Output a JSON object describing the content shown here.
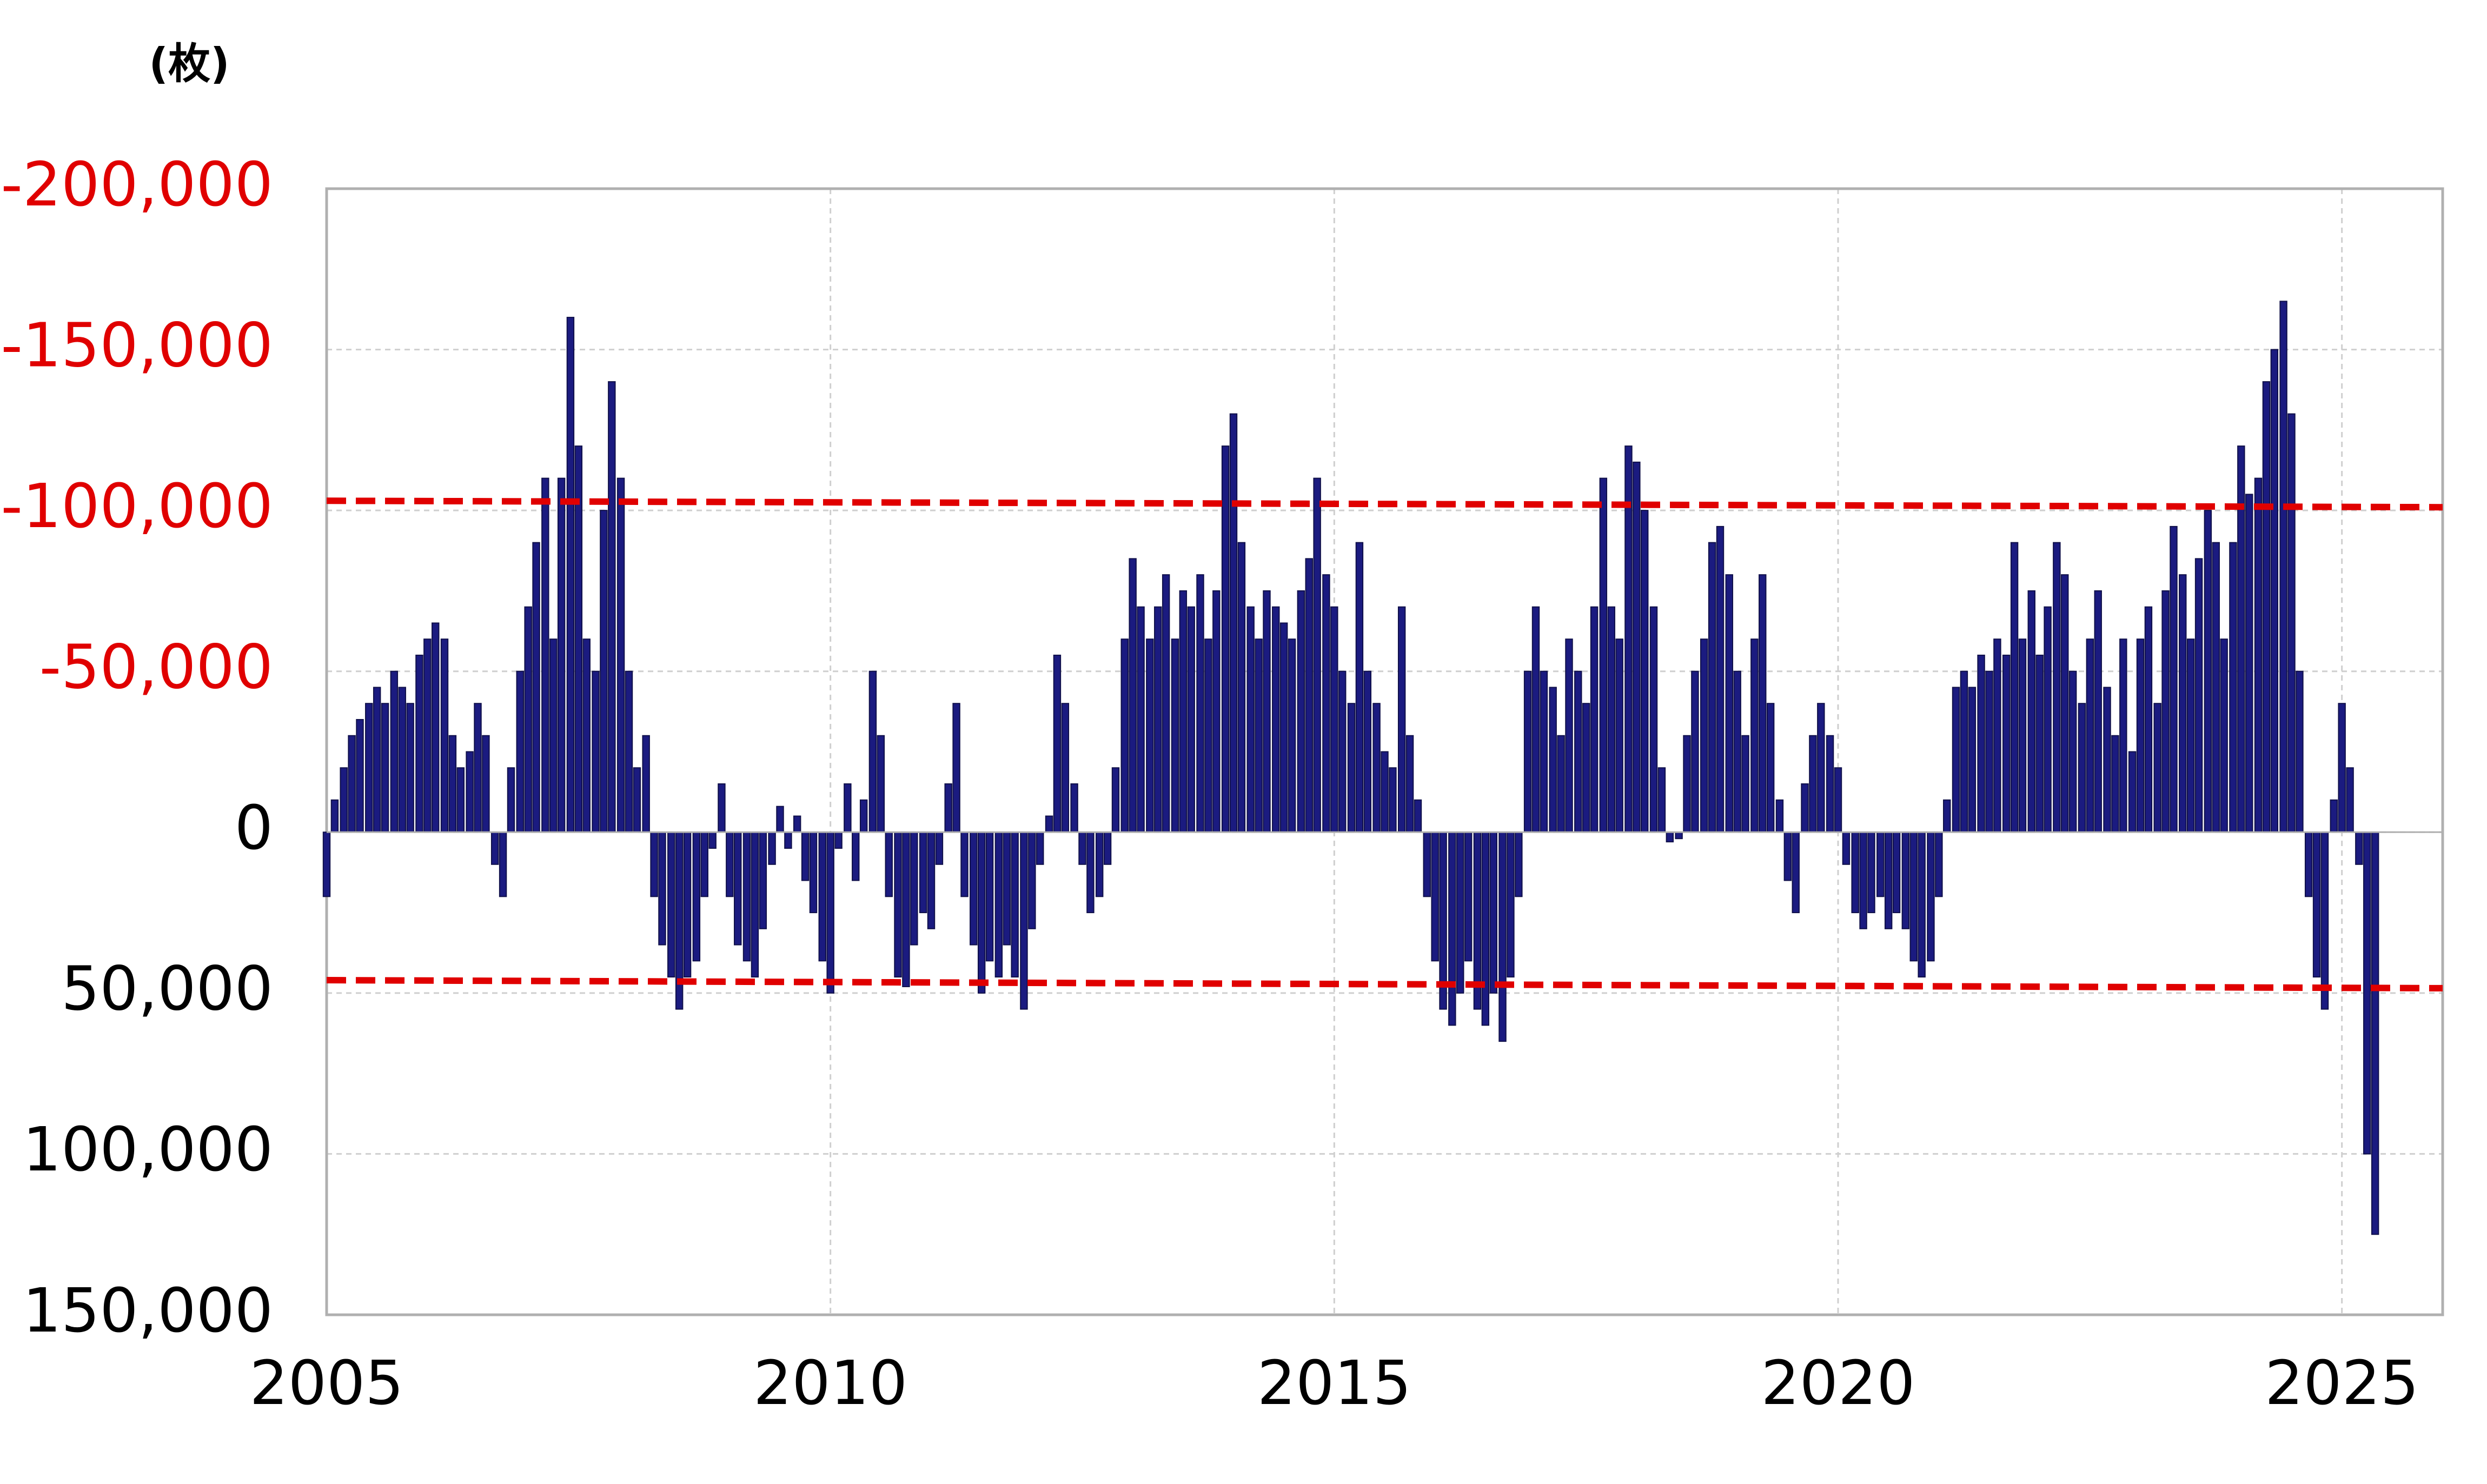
{
  "chart_data": {
    "type": "bar",
    "unit_label": "(枚)",
    "color": "#1b1b80",
    "negative_tick_color": "#e00000",
    "y_inverted": true,
    "grid": true,
    "xlim": [
      2005,
      2026
    ],
    "xticks": [
      2005,
      2010,
      2015,
      2020,
      2025
    ],
    "ylim": [
      -200000,
      150000
    ],
    "yticks": [
      {
        "value": -200000,
        "label": "-200,000"
      },
      {
        "value": -150000,
        "label": "-150,000"
      },
      {
        "value": -100000,
        "label": "-100,000"
      },
      {
        "value": -50000,
        "label": "-50,000"
      },
      0,
      {
        "value": 50000,
        "label": "50,000"
      },
      {
        "value": 100000,
        "label": "100,000"
      },
      {
        "value": 150000,
        "label": "150,000"
      }
    ],
    "reference_lines": [
      {
        "x": [
          2005,
          2026
        ],
        "y": [
          -103000,
          -101000
        ],
        "color": "#e00000"
      },
      {
        "x": [
          2005,
          2026
        ],
        "y": [
          46000,
          48500
        ],
        "color": "#e00000"
      }
    ],
    "x": [
      2005,
      2005.08,
      2005.17,
      2005.25,
      2005.33,
      2005.42,
      2005.5,
      2005.58,
      2005.67,
      2005.75,
      2005.83,
      2005.92,
      2006,
      2006.08,
      2006.17,
      2006.25,
      2006.33,
      2006.42,
      2006.5,
      2006.58,
      2006.67,
      2006.75,
      2006.83,
      2006.92,
      2007,
      2007.08,
      2007.17,
      2007.25,
      2007.33,
      2007.42,
      2007.5,
      2007.58,
      2007.67,
      2007.75,
      2007.83,
      2007.92,
      2008,
      2008.08,
      2008.17,
      2008.25,
      2008.33,
      2008.42,
      2008.5,
      2008.58,
      2008.67,
      2008.75,
      2008.83,
      2008.92,
      2009,
      2009.08,
      2009.17,
      2009.25,
      2009.33,
      2009.42,
      2009.5,
      2009.58,
      2009.67,
      2009.75,
      2009.83,
      2009.92,
      2010,
      2010.08,
      2010.17,
      2010.25,
      2010.33,
      2010.42,
      2010.5,
      2010.58,
      2010.67,
      2010.75,
      2010.83,
      2010.92,
      2011,
      2011.08,
      2011.17,
      2011.25,
      2011.33,
      2011.42,
      2011.5,
      2011.58,
      2011.67,
      2011.75,
      2011.83,
      2011.92,
      2012,
      2012.08,
      2012.17,
      2012.25,
      2012.33,
      2012.42,
      2012.5,
      2012.58,
      2012.67,
      2012.75,
      2012.83,
      2012.92,
      2013,
      2013.08,
      2013.17,
      2013.25,
      2013.33,
      2013.42,
      2013.5,
      2013.58,
      2013.67,
      2013.75,
      2013.83,
      2013.92,
      2014,
      2014.08,
      2014.17,
      2014.25,
      2014.33,
      2014.42,
      2014.5,
      2014.58,
      2014.67,
      2014.75,
      2014.83,
      2014.92,
      2015,
      2015.08,
      2015.17,
      2015.25,
      2015.33,
      2015.42,
      2015.5,
      2015.58,
      2015.67,
      2015.75,
      2015.83,
      2015.92,
      2016,
      2016.08,
      2016.17,
      2016.25,
      2016.33,
      2016.42,
      2016.5,
      2016.58,
      2016.67,
      2016.75,
      2016.83,
      2016.92,
      2017,
      2017.08,
      2017.17,
      2017.25,
      2017.33,
      2017.42,
      2017.5,
      2017.58,
      2017.67,
      2017.75,
      2017.83,
      2017.92,
      2018,
      2018.08,
      2018.17,
      2018.25,
      2018.33,
      2018.42,
      2018.5,
      2018.58,
      2018.67,
      2018.75,
      2018.83,
      2018.92,
      2019,
      2019.08,
      2019.17,
      2019.25,
      2019.33,
      2019.42,
      2019.5,
      2019.58,
      2019.67,
      2019.75,
      2019.83,
      2019.92,
      2020,
      2020.08,
      2020.17,
      2020.25,
      2020.33,
      2020.42,
      2020.5,
      2020.58,
      2020.67,
      2020.75,
      2020.83,
      2020.92,
      2021,
      2021.08,
      2021.17,
      2021.25,
      2021.33,
      2021.42,
      2021.5,
      2021.58,
      2021.67,
      2021.75,
      2021.83,
      2021.92,
      2022,
      2022.08,
      2022.17,
      2022.25,
      2022.33,
      2022.42,
      2022.5,
      2022.58,
      2022.67,
      2022.75,
      2022.83,
      2022.92,
      2023,
      2023.08,
      2023.17,
      2023.25,
      2023.33,
      2023.42,
      2023.5,
      2023.58,
      2023.67,
      2023.75,
      2023.83,
      2023.92,
      2024,
      2024.08,
      2024.17,
      2024.25,
      2024.33,
      2024.42,
      2024.5,
      2024.58,
      2024.67,
      2024.75,
      2024.83,
      2024.92,
      2025,
      2025.08,
      2025.17,
      2025.25,
      2025.33
    ],
    "values": [
      20000,
      -10000,
      -20000,
      -30000,
      -35000,
      -40000,
      -45000,
      -40000,
      -50000,
      -45000,
      -40000,
      -55000,
      -60000,
      -65000,
      -60000,
      -30000,
      -20000,
      -25000,
      -40000,
      -30000,
      10000,
      20000,
      -20000,
      -50000,
      -70000,
      -90000,
      -110000,
      -60000,
      -110000,
      -160000,
      -120000,
      -60000,
      -50000,
      -100000,
      -140000,
      -110000,
      -50000,
      -20000,
      -30000,
      20000,
      35000,
      45000,
      55000,
      45000,
      40000,
      20000,
      5000,
      -15000,
      20000,
      35000,
      40000,
      45000,
      30000,
      10000,
      -8000,
      5000,
      -5000,
      15000,
      25000,
      40000,
      50000,
      5000,
      -15000,
      15000,
      -10000,
      -50000,
      -30000,
      20000,
      45000,
      48000,
      35000,
      25000,
      30000,
      10000,
      -15000,
      -40000,
      20000,
      35000,
      50000,
      40000,
      45000,
      35000,
      45000,
      55000,
      30000,
      10000,
      -5000,
      -55000,
      -40000,
      -15000,
      10000,
      25000,
      20000,
      10000,
      -20000,
      -60000,
      -85000,
      -70000,
      -60000,
      -70000,
      -80000,
      -60000,
      -75000,
      -70000,
      -80000,
      -60000,
      -75000,
      -120000,
      -130000,
      -90000,
      -70000,
      -60000,
      -75000,
      -70000,
      -65000,
      -60000,
      -75000,
      -85000,
      -110000,
      -80000,
      -70000,
      -50000,
      -40000,
      -90000,
      -50000,
      -40000,
      -25000,
      -20000,
      -70000,
      -30000,
      -10000,
      20000,
      40000,
      55000,
      60000,
      50000,
      40000,
      55000,
      60000,
      50000,
      65000,
      45000,
      20000,
      -50000,
      -70000,
      -50000,
      -45000,
      -30000,
      -60000,
      -50000,
      -40000,
      -70000,
      -110000,
      -70000,
      -60000,
      -120000,
      -115000,
      -100000,
      -70000,
      -20000,
      3000,
      2000,
      -30000,
      -50000,
      -60000,
      -90000,
      -95000,
      -80000,
      -50000,
      -30000,
      -60000,
      -80000,
      -40000,
      -10000,
      15000,
      25000,
      -15000,
      -30000,
      -40000,
      -30000,
      -20000,
      10000,
      25000,
      30000,
      25000,
      20000,
      30000,
      25000,
      30000,
      40000,
      45000,
      40000,
      20000,
      -10000,
      -45000,
      -50000,
      -45000,
      -55000,
      -50000,
      -60000,
      -55000,
      -90000,
      -60000,
      -75000,
      -55000,
      -70000,
      -90000,
      -80000,
      -50000,
      -40000,
      -60000,
      -75000,
      -45000,
      -30000,
      -60000,
      -25000,
      -60000,
      -70000,
      -40000,
      -75000,
      -95000,
      -80000,
      -60000,
      -85000,
      -100000,
      -90000,
      -60000,
      -90000,
      -120000,
      -105000,
      -110000,
      -140000,
      -150000,
      -165000,
      -130000,
      -50000,
      20000,
      45000,
      55000,
      -10000,
      -40000,
      -20000,
      10000,
      100000,
      125000
    ]
  }
}
